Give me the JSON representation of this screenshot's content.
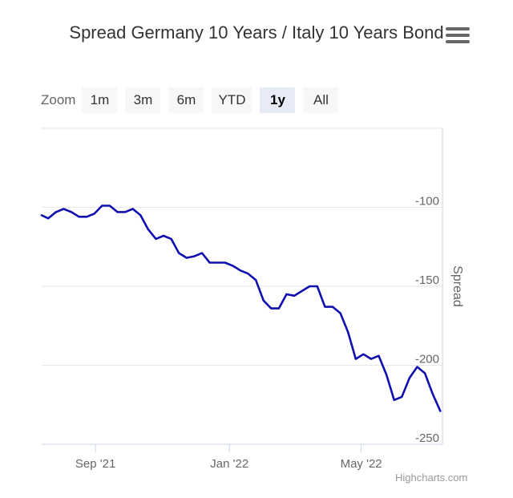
{
  "chart_data": {
    "type": "line",
    "title": "Spread Germany 10 Years / Italy 10 Years Bond",
    "ylabel": "Spread",
    "ylim": [
      -250,
      -50
    ],
    "y_ticks": [
      "-100",
      "-150",
      "-200",
      "-250"
    ],
    "y_tick_values": [
      -100,
      -150,
      -200,
      -250
    ],
    "x_ticks": [
      "Sep '21",
      "Jan '22",
      "May '22"
    ],
    "x_tick_dates": [
      "2021-09-01",
      "2022-01-01",
      "2022-05-01"
    ],
    "xlim": [
      "2021-07-14",
      "2022-07-14"
    ],
    "line_color": "#1010b0",
    "series": [
      {
        "x": [
          "2021-07-14",
          "2021-07-20",
          "2021-07-27",
          "2021-08-03",
          "2021-08-10",
          "2021-08-17",
          "2021-08-24",
          "2021-08-31",
          "2021-09-07",
          "2021-09-14",
          "2021-09-21",
          "2021-09-28",
          "2021-10-05",
          "2021-10-12",
          "2021-10-19",
          "2021-10-26",
          "2021-11-02",
          "2021-11-09",
          "2021-11-16",
          "2021-11-23",
          "2021-11-30",
          "2021-12-07",
          "2021-12-14",
          "2021-12-21",
          "2021-12-28",
          "2022-01-04",
          "2022-01-11",
          "2022-01-18",
          "2022-01-25",
          "2022-02-01",
          "2022-02-08",
          "2022-02-15",
          "2022-02-22",
          "2022-03-01",
          "2022-03-08",
          "2022-03-15",
          "2022-03-22",
          "2022-03-29",
          "2022-04-05",
          "2022-04-12",
          "2022-04-19",
          "2022-04-26",
          "2022-05-03",
          "2022-05-10",
          "2022-05-17",
          "2022-05-24",
          "2022-05-31",
          "2022-06-07",
          "2022-06-14",
          "2022-06-21",
          "2022-06-28",
          "2022-07-05",
          "2022-07-12"
        ],
        "y": [
          -105,
          -107,
          -103,
          -101,
          -103,
          -106,
          -106,
          -104,
          -99,
          -99,
          -103,
          -103,
          -101,
          -105,
          -114,
          -120,
          -118,
          -120,
          -129,
          -132,
          -131,
          -129,
          -135,
          -135,
          -135,
          -137,
          -140,
          -142,
          -146,
          -159,
          -164,
          -164,
          -155,
          -156,
          -153,
          -150,
          -150,
          -163,
          -163,
          -167,
          -179,
          -196,
          -193,
          -196,
          -194,
          -206,
          -222,
          -220,
          -208,
          -201,
          -205,
          -218,
          -229
        ]
      }
    ]
  },
  "range_selector": {
    "zoom_label": "Zoom",
    "buttons": [
      {
        "label": "1m",
        "active": false
      },
      {
        "label": "3m",
        "active": false
      },
      {
        "label": "6m",
        "active": false
      },
      {
        "label": "YTD",
        "active": false
      },
      {
        "label": "1y",
        "active": true
      },
      {
        "label": "All",
        "active": false
      }
    ]
  },
  "menu": {
    "icon": "hamburger-menu-icon"
  },
  "credits": "Highcharts.com"
}
